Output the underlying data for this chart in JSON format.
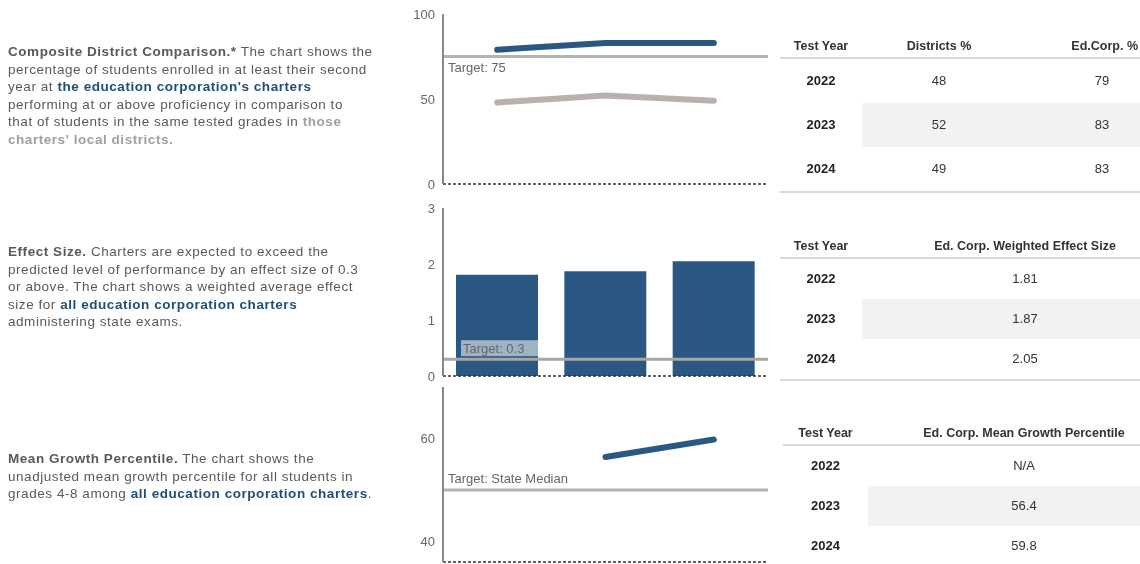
{
  "chart_data": [
    {
      "type": "other",
      "title": "Composite District Comparison.*",
      "annotations": [
        "The chart shows the",
        "percentage of students enrolled in at least their second",
        "year at",
        "the education corporation's charters",
        "performing at or above proficiency in comparison to",
        "that of students in the same tested grades in",
        "those",
        "charters' local districts."
      ]
    },
    {
      "type": "line",
      "categories": [
        null,
        null,
        null
      ],
      "series": [
        {
          "color": "#bab0ad",
          "values": [
            48,
            52,
            49
          ]
        },
        {
          "color": "#2b5783",
          "values": [
            79,
            83,
            83
          ]
        }
      ],
      "ylim": [
        0,
        100
      ],
      "yticks": [
        0,
        50,
        100
      ],
      "ref_lines": [
        {
          "axis": "y",
          "value": 75,
          "label": "Target: 75",
          "color": "#b3b3b3"
        }
      ],
      "tick_labels": "y",
      "marker": "none",
      "line_style": "solid"
    },
    {
      "type": "heatmap",
      "ylabel": "Test Year",
      "categories": [
        "Districts %",
        "Ed.Corp. %"
      ],
      "y_categories": [
        "2022",
        "2023",
        "2024"
      ],
      "cells": [
        [
          48,
          79
        ],
        [
          52,
          83
        ],
        [
          49,
          83
        ]
      ],
      "data_labels": true
    },
    {
      "type": "other",
      "title": "Effect Size.",
      "annotations": [
        "Charters are expected to exceed the",
        "predicted level of performance by an effect size of 0.3",
        "or above. The chart shows a weighted average effect",
        "size for",
        "all education corporation charters",
        "administering state exams."
      ]
    },
    {
      "type": "bar",
      "categories": [
        null,
        null,
        null
      ],
      "series": [
        {
          "color": "#2b5783",
          "values": [
            1.81,
            1.87,
            2.05
          ]
        }
      ],
      "ylim": [
        0,
        3
      ],
      "yticks": [
        0,
        1,
        2,
        3
      ],
      "ref_lines": [
        {
          "axis": "y",
          "value": 0.3,
          "label": "Target: 0.3",
          "color": "#a6a6a6"
        }
      ],
      "tick_labels": "y"
    },
    {
      "type": "heatmap",
      "ylabel": "Test Year",
      "categories": [
        "Ed. Corp. Weighted Effect Size"
      ],
      "y_categories": [
        "2022",
        "2023",
        "2024"
      ],
      "cells": [
        [
          1.81
        ],
        [
          1.87
        ],
        [
          2.05
        ]
      ],
      "data_labels": true
    },
    {
      "type": "other",
      "title": "Mean Growth Percentile.",
      "annotations": [
        "The chart shows the",
        "unadjusted mean growth percentile for all students in",
        "grades 4-8 among",
        "all education corporation charters",
        "."
      ]
    },
    {
      "type": "line",
      "categories": [
        null,
        null,
        null
      ],
      "series": [
        {
          "color": "#2b5783",
          "values": [
            null,
            56.4,
            59.8
          ]
        }
      ],
      "ylim": [
        36,
        70
      ],
      "yticks": [
        40,
        60
      ],
      "ref_lines": [
        {
          "axis": "y",
          "value": 50,
          "label": "Target: State Median",
          "color": "#b3b3b3"
        }
      ],
      "tick_labels": "y",
      "marker": "none",
      "line_style": "solid"
    },
    {
      "type": "heatmap",
      "ylabel": "Test Year",
      "categories": [
        "Ed. Corp. Mean Growth Percentile"
      ],
      "y_categories": [
        "2022",
        "2023",
        "2024"
      ],
      "cells": [
        [
          null
        ],
        [
          56.4
        ],
        [
          59.8
        ]
      ],
      "cell_labels": [
        [
          "N/A"
        ],
        [
          "56.4"
        ],
        [
          "59.8"
        ]
      ]
    }
  ]
}
